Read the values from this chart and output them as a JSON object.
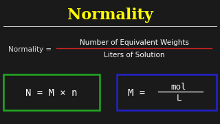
{
  "bg_color": "#1a1a1a",
  "title": "Normality",
  "title_color": "#ffff00",
  "title_fontsize": 16,
  "divider_color": "#cccccc",
  "normality_label": "Normality = ",
  "numerator": "Number of Equivalent Weights",
  "denominator": "Liters of Solution",
  "numerator_color": "#ffffff",
  "fraction_line_color": "#cc2222",
  "denominator_color": "#ffffff",
  "normality_label_color": "#dddddd",
  "formula1": "N = M × n",
  "formula2_top": "mol",
  "formula2_left": "M = ",
  "formula2_bot": "L",
  "formula1_color": "#ffffff",
  "formula2_color": "#ffffff",
  "box1_color": "#22aa22",
  "box2_color": "#2222cc",
  "text_fontsize": 7.5,
  "formula_fontsize": 10
}
